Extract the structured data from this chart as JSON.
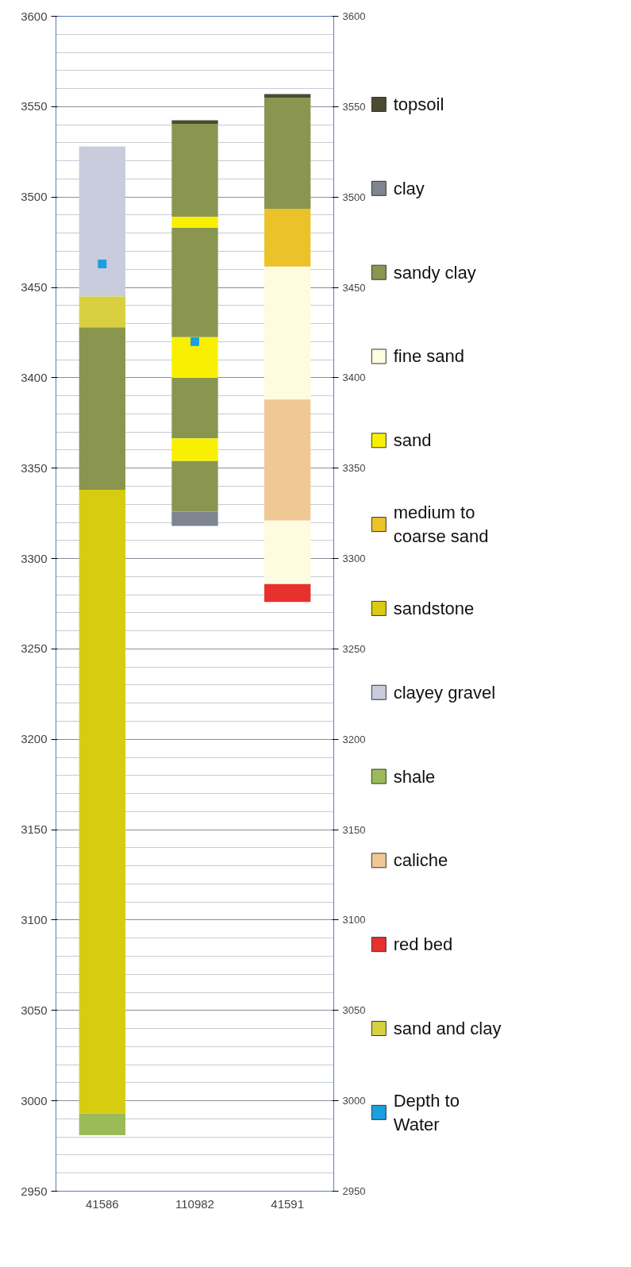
{
  "chart_data": {
    "type": "bar",
    "categories": [
      "41586",
      "110982",
      "41591"
    ],
    "ylim": [
      2950,
      3600
    ],
    "yticks": [
      2950,
      3000,
      3050,
      3100,
      3150,
      3200,
      3250,
      3300,
      3350,
      3400,
      3450,
      3500,
      3550,
      3600
    ],
    "y2lim": [
      2950,
      3600
    ],
    "y2ticks": [
      2950,
      3000,
      3050,
      3100,
      3150,
      3200,
      3250,
      3300,
      3350,
      3400,
      3450,
      3500,
      3550,
      3600
    ],
    "grid": "y",
    "legend": "right",
    "series": [
      {
        "name": "topsoil",
        "color": "#4b4b32",
        "base": [
          null,
          3540.5,
          3555
        ],
        "values": [
          null,
          2,
          2
        ]
      },
      {
        "name": "clay",
        "color": "#7f8590",
        "base": [
          null,
          3318,
          null
        ],
        "values": [
          null,
          8,
          null
        ]
      },
      {
        "name": "sandy clay",
        "color": "#8a9650",
        "base": [
          3338,
          3489,
          3493.5
        ],
        "values": [
          90,
          51.5,
          61.5
        ]
      },
      {
        "name": "fine sand",
        "color": "#fdfbe0",
        "base": [
          null,
          null,
          3388
        ],
        "values": [
          null,
          null,
          73.5
        ]
      },
      {
        "name": "sand",
        "color": "#f8f000",
        "base": [
          null,
          3483,
          null
        ],
        "values": [
          null,
          6,
          null
        ]
      },
      {
        "name": "medium to coarse sand",
        "color": "#ecc22a",
        "base": [
          null,
          null,
          3461.5
        ],
        "values": [
          null,
          null,
          32
        ]
      },
      {
        "name": "sandstone",
        "color": "#d8cc10",
        "base": [
          2993,
          null,
          null
        ],
        "values": [
          345,
          null,
          null
        ]
      },
      {
        "name": "clayey gravel",
        "color": "#c9ccdc",
        "base": [
          3445,
          null,
          null
        ],
        "values": [
          83,
          null,
          null
        ]
      },
      {
        "name": "shale",
        "color": "#9bbb59",
        "base": [
          2981,
          null,
          null
        ],
        "values": [
          12,
          null,
          null
        ]
      },
      {
        "name": "caliche",
        "color": "#f0c896",
        "base": [
          null,
          null,
          3321
        ],
        "values": [
          null,
          null,
          67
        ]
      },
      {
        "name": "red bed",
        "color": "#e8302c",
        "base": [
          null,
          null,
          3276
        ],
        "values": [
          null,
          null,
          10
        ]
      },
      {
        "name": "sand and clay",
        "color": "#d8d040",
        "base": [
          3428,
          null,
          null
        ],
        "values": [
          17,
          null,
          null
        ]
      },
      {
        "type": "scatter",
        "name": "Depth to Water",
        "color": "#1aa0e0",
        "marker": "square",
        "values": [
          3463,
          3420,
          null
        ]
      },
      {
        "color": "#8a9650",
        "base": [
          null,
          3422.5,
          null
        ],
        "values": [
          null,
          60.5,
          null
        ]
      },
      {
        "color": "#8a9650",
        "base": [
          null,
          3366.5,
          null
        ],
        "values": [
          null,
          33.5,
          null
        ]
      },
      {
        "color": "#8a9650",
        "base": [
          null,
          3326,
          null
        ],
        "values": [
          null,
          28,
          null
        ]
      },
      {
        "color": "#fdfbe0",
        "base": [
          null,
          null,
          3286
        ],
        "values": [
          null,
          null,
          35
        ]
      },
      {
        "color": "#f8f000",
        "base": [
          null,
          3400,
          null
        ],
        "values": [
          null,
          22.5,
          null
        ]
      },
      {
        "color": "#f8f000",
        "base": [
          null,
          3354,
          null
        ],
        "values": [
          null,
          12.5,
          null
        ]
      }
    ]
  }
}
